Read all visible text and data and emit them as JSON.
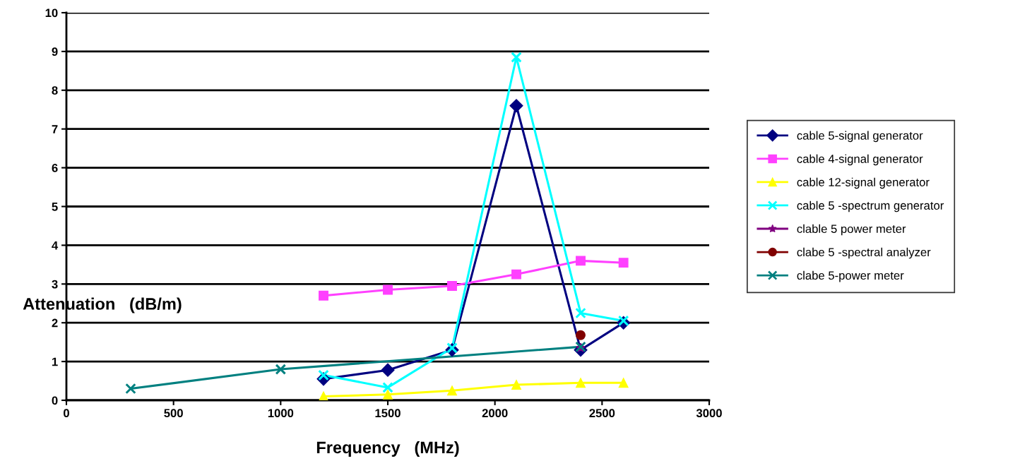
{
  "chart_data": {
    "type": "line",
    "xlabel": "Frequency   (MHz)",
    "ylabel": "Attenuation   (dB/m)",
    "xlim": [
      0,
      3000
    ],
    "xticks": [
      0,
      500,
      1000,
      1500,
      2000,
      2500,
      3000
    ],
    "ylim": [
      0,
      10
    ],
    "yticks": [
      0,
      1,
      2,
      3,
      4,
      5,
      6,
      7,
      8,
      9,
      10
    ],
    "grid": "y",
    "legend": "right",
    "series": [
      {
        "name": "cable 5-signal generator",
        "color": "#000080",
        "marker": "diamond",
        "x": [
          1200,
          1500,
          1800,
          2100,
          2400,
          2600
        ],
        "values": [
          0.55,
          0.78,
          1.3,
          7.6,
          1.3,
          2.0
        ]
      },
      {
        "name": "cable 4-signal generator",
        "color": "#ff40ff",
        "marker": "square",
        "x": [
          1200,
          1500,
          1800,
          2100,
          2400,
          2600
        ],
        "values": [
          2.7,
          2.85,
          2.95,
          3.25,
          3.6,
          3.55
        ]
      },
      {
        "name": "cable 12-signal generator",
        "color": "#ffff00",
        "marker": "triangle",
        "x": [
          1200,
          1500,
          1800,
          2100,
          2400,
          2600
        ],
        "values": [
          0.1,
          0.15,
          0.25,
          0.4,
          0.45,
          0.45
        ]
      },
      {
        "name": "cable 5 -spectrum generator",
        "color": "#00ffff",
        "marker": "cross",
        "x": [
          1200,
          1500,
          1800,
          2100,
          2400,
          2600
        ],
        "values": [
          0.65,
          0.33,
          1.35,
          8.85,
          2.25,
          2.05
        ]
      },
      {
        "name": "clable 5 power meter",
        "color": "#800080",
        "marker": "star",
        "x": [
          2400
        ],
        "values": [
          1.35
        ]
      },
      {
        "name": "clabe 5 -spectral analyzer",
        "color": "#800000",
        "marker": "circle",
        "x": [
          2400
        ],
        "values": [
          1.68
        ]
      },
      {
        "name": "clabe 5-power meter",
        "color": "#008080",
        "marker": "cross",
        "x": [
          300,
          1000,
          2400
        ],
        "values": [
          0.3,
          0.8,
          1.38
        ]
      }
    ]
  }
}
